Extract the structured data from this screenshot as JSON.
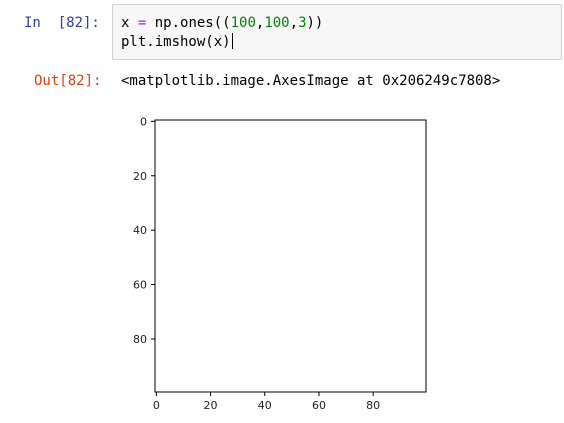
{
  "cell": {
    "in_prompt": "In  [82]:",
    "code_lines": [
      [
        {
          "t": "x ",
          "c": "plain"
        },
        {
          "t": "=",
          "c": "op"
        },
        {
          "t": " np.ones((",
          "c": "plain"
        },
        {
          "t": "100",
          "c": "num"
        },
        {
          "t": ",",
          "c": "plain"
        },
        {
          "t": "100",
          "c": "num"
        },
        {
          "t": ",",
          "c": "plain"
        },
        {
          "t": "3",
          "c": "num"
        },
        {
          "t": "))",
          "c": "plain"
        }
      ],
      [
        {
          "t": "plt.imshow(x)",
          "c": "plain"
        }
      ]
    ],
    "out_prompt": "Out[82]:",
    "output_text": "<matplotlib.image.AxesImage at 0x206249c7808>"
  },
  "chart_data": {
    "type": "heatmap",
    "image_shape": [
      100,
      100,
      3
    ],
    "fill_color": "#ffffff",
    "xlim": [
      -0.5,
      99.5
    ],
    "ylim": [
      99.5,
      -0.5
    ],
    "x_ticks": [
      0,
      20,
      40,
      60,
      80
    ],
    "y_ticks": [
      0,
      20,
      40,
      60,
      80
    ],
    "x_tick_labels": [
      "0",
      "20",
      "40",
      "60",
      "80"
    ],
    "y_tick_labels": [
      "0",
      "20",
      "40",
      "60",
      "80"
    ],
    "grid": false
  }
}
